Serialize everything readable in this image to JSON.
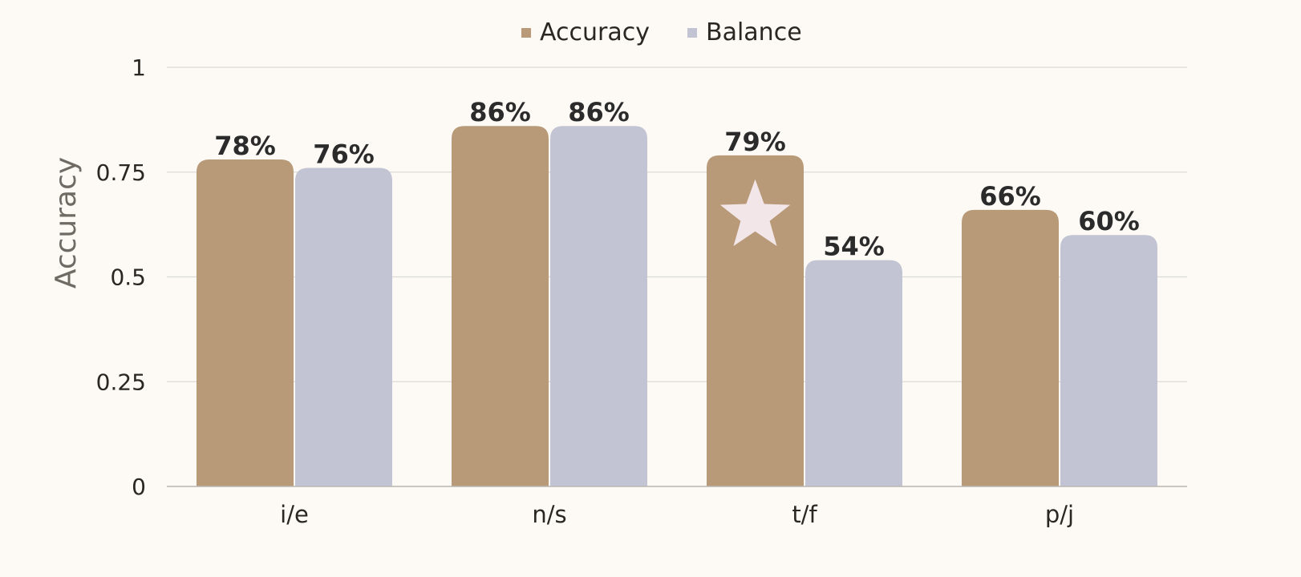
{
  "chart_data": {
    "type": "bar",
    "categories": [
      "i/e",
      "n/s",
      "t/f",
      "p/j"
    ],
    "series": [
      {
        "name": "Accuracy",
        "values": [
          0.78,
          0.86,
          0.79,
          0.66
        ],
        "labels": [
          "78%",
          "86%",
          "79%",
          "66%"
        ],
        "color": "#b89a78"
      },
      {
        "name": "Balance",
        "values": [
          0.76,
          0.86,
          0.54,
          0.6
        ],
        "labels": [
          "76%",
          "86%",
          "54%",
          "60%"
        ],
        "color": "#c2c4d3"
      }
    ],
    "ylabel": "Accuracy",
    "xlabel": "",
    "ylim": [
      0,
      1
    ],
    "yticks": [
      0,
      0.25,
      0.5,
      0.75,
      1
    ],
    "ytick_labels": [
      "0",
      "0.25",
      "0.5",
      "0.75",
      "1"
    ],
    "grid": true,
    "legend_position": "top-center",
    "highlight": {
      "category": "t/f",
      "series": "Accuracy",
      "marker": "star-icon",
      "color": "#f3e6e8"
    }
  }
}
